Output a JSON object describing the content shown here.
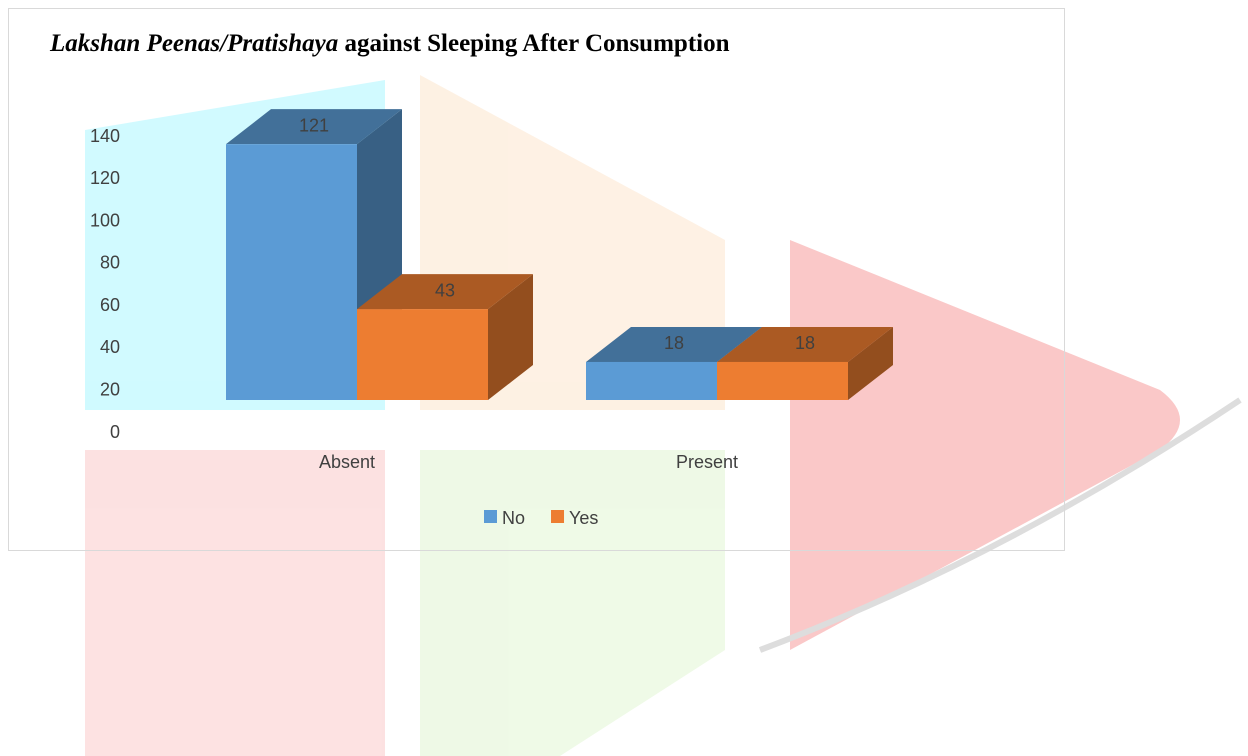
{
  "chart_data": {
    "type": "bar3d",
    "title_parts": [
      "Lakshan Peenas/Pratishaya",
      "against Sleeping After Consumption"
    ],
    "categories": [
      "Absent",
      "Present"
    ],
    "series": [
      {
        "name": "No",
        "color": "#5b9bd5",
        "values": [
          121,
          18
        ]
      },
      {
        "name": "Yes",
        "color": "#ed7d31",
        "values": [
          43,
          18
        ]
      }
    ],
    "ylim": [
      0,
      140
    ],
    "yticks": [
      0,
      20,
      40,
      60,
      80,
      100,
      120,
      140
    ],
    "grid": false,
    "legend": "bottom"
  }
}
